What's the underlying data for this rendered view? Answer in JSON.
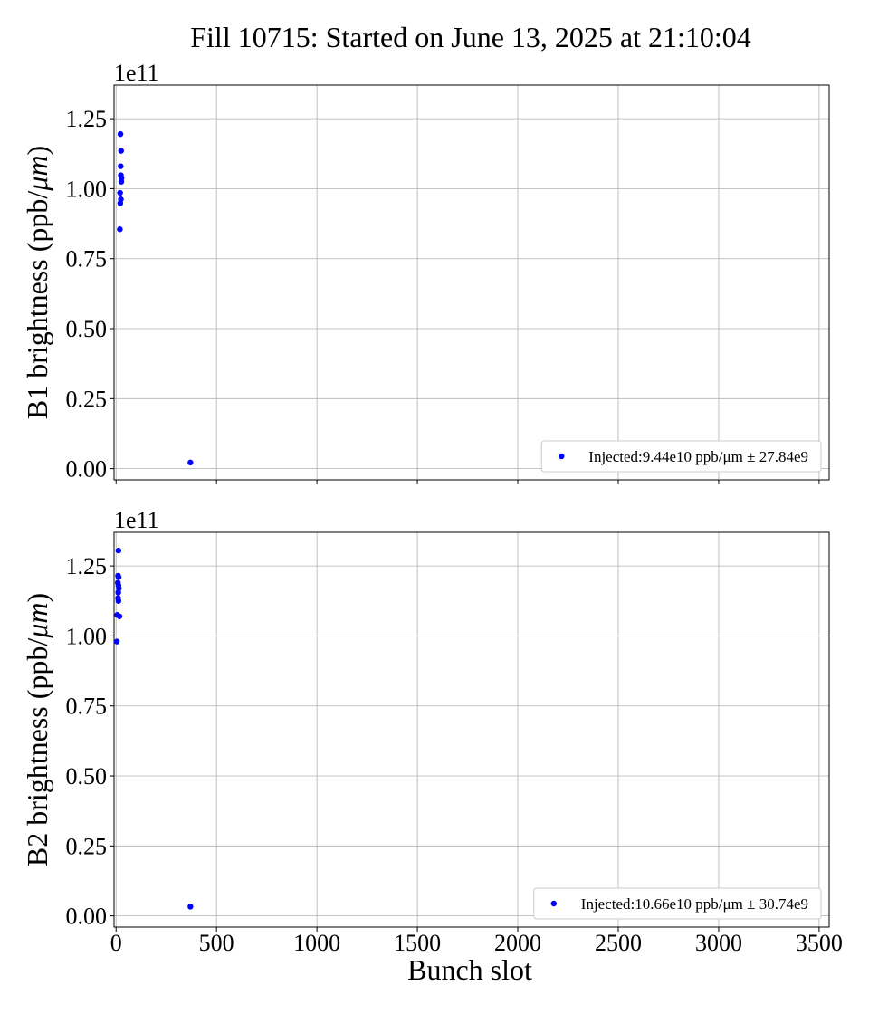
{
  "title": "Fill 10715: Started on June 13, 2025 at 21:10:04",
  "colors": {
    "series": "#0000ff",
    "grid": "#b0b0b0"
  },
  "chart_data": [
    {
      "type": "scatter",
      "ylabel": "B1 brightness (ppb/μm)",
      "scale_label": "1e11",
      "xlim": [
        -10,
        3550
      ],
      "ylim": [
        -0.04,
        1.37
      ],
      "y_multiplier": 100000000000.0,
      "yticks": [
        0.0,
        0.25,
        0.5,
        0.75,
        1.0,
        1.25
      ],
      "yticklabels": [
        "0.00",
        "0.25",
        "0.50",
        "0.75",
        "1.00",
        "1.25"
      ],
      "xticks": [
        0,
        500,
        1000,
        1500,
        2000,
        2500,
        3000,
        3500
      ],
      "grid": true,
      "legend_position": "lower right",
      "series": [
        {
          "name": "Injected:9.44e10 ppb/μm ± 27.84e9",
          "points": [
            {
              "x": 22,
              "y": 1.195
            },
            {
              "x": 25,
              "y": 1.135
            },
            {
              "x": 23,
              "y": 1.08
            },
            {
              "x": 24,
              "y": 1.048
            },
            {
              "x": 27,
              "y": 1.038
            },
            {
              "x": 26,
              "y": 1.025
            },
            {
              "x": 20,
              "y": 0.985
            },
            {
              "x": 24,
              "y": 0.962
            },
            {
              "x": 21,
              "y": 0.948
            },
            {
              "x": 19,
              "y": 0.855
            },
            {
              "x": 370,
              "y": 0.022
            }
          ]
        }
      ]
    },
    {
      "type": "scatter",
      "ylabel": "B2 brightness (ppb/μm)",
      "scale_label": "1e11",
      "xlabel": "Bunch slot",
      "xlim": [
        -10,
        3550
      ],
      "ylim": [
        -0.04,
        1.37
      ],
      "y_multiplier": 100000000000.0,
      "yticks": [
        0.0,
        0.25,
        0.5,
        0.75,
        1.0,
        1.25
      ],
      "yticklabels": [
        "0.00",
        "0.25",
        "0.50",
        "0.75",
        "1.00",
        "1.25"
      ],
      "xticks": [
        0,
        500,
        1000,
        1500,
        2000,
        2500,
        3000,
        3500
      ],
      "xticklabels": [
        "0",
        "500",
        "1000",
        "1500",
        "2000",
        "2500",
        "3000",
        "3500"
      ],
      "grid": true,
      "legend_position": "lower right",
      "series": [
        {
          "name": "Injected:10.66e10 ppb/μm ± 30.74e9",
          "points": [
            {
              "x": 12,
              "y": 1.305
            },
            {
              "x": 10,
              "y": 1.215
            },
            {
              "x": 13,
              "y": 1.21
            },
            {
              "x": 9,
              "y": 1.19
            },
            {
              "x": 12,
              "y": 1.18
            },
            {
              "x": 14,
              "y": 1.17
            },
            {
              "x": 11,
              "y": 1.155
            },
            {
              "x": 10,
              "y": 1.135
            },
            {
              "x": 12,
              "y": 1.125
            },
            {
              "x": 6,
              "y": 1.075
            },
            {
              "x": 17,
              "y": 1.07
            },
            {
              "x": 4,
              "y": 0.98
            },
            {
              "x": 370,
              "y": 0.033
            }
          ]
        }
      ]
    }
  ]
}
